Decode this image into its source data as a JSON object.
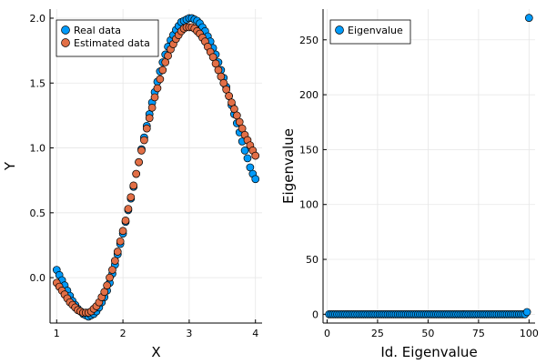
{
  "chart_data": [
    {
      "type": "scatter",
      "title": "",
      "xlabel": "X",
      "ylabel": "Y",
      "xlim": [
        0.9,
        4.1
      ],
      "ylim": [
        -0.35,
        2.07
      ],
      "x_ticks": [
        1,
        2,
        3,
        4
      ],
      "x_tick_labels": [
        "1",
        "2",
        "3",
        "4"
      ],
      "y_ticks": [
        0.0,
        0.5,
        1.0,
        1.5,
        2.0
      ],
      "y_tick_labels": [
        "0.0",
        "0.5",
        "1.0",
        "1.5",
        "2.0"
      ],
      "grid": true,
      "legend_position": "top-left",
      "series": [
        {
          "name": "Real data",
          "color": "#009af9",
          "x": [
            1.0,
            1.04,
            1.08,
            1.12,
            1.16,
            1.2,
            1.24,
            1.28,
            1.32,
            1.36,
            1.4,
            1.44,
            1.48,
            1.52,
            1.56,
            1.6,
            1.64,
            1.68,
            1.72,
            1.76,
            1.8,
            1.84,
            1.88,
            1.92,
            1.96,
            2.0,
            2.04,
            2.08,
            2.12,
            2.16,
            2.2,
            2.24,
            2.28,
            2.32,
            2.36,
            2.4,
            2.44,
            2.48,
            2.52,
            2.56,
            2.6,
            2.64,
            2.68,
            2.72,
            2.76,
            2.8,
            2.84,
            2.88,
            2.92,
            2.96,
            3.0,
            3.04,
            3.08,
            3.12,
            3.16,
            3.2,
            3.24,
            3.28,
            3.32,
            3.36,
            3.4,
            3.44,
            3.48,
            3.52,
            3.56,
            3.6,
            3.64,
            3.68,
            3.72,
            3.76,
            3.8,
            3.84,
            3.88,
            3.92,
            3.96,
            4.0
          ],
          "y": [
            0.06,
            0.02,
            -0.02,
            -0.06,
            -0.1,
            -0.14,
            -0.18,
            -0.21,
            -0.24,
            -0.26,
            -0.28,
            -0.29,
            -0.3,
            -0.29,
            -0.28,
            -0.26,
            -0.23,
            -0.19,
            -0.15,
            -0.1,
            -0.04,
            0.03,
            0.1,
            0.18,
            0.26,
            0.34,
            0.43,
            0.52,
            0.61,
            0.7,
            0.8,
            0.89,
            0.99,
            1.08,
            1.17,
            1.26,
            1.35,
            1.43,
            1.51,
            1.59,
            1.66,
            1.72,
            1.78,
            1.83,
            1.87,
            1.91,
            1.94,
            1.97,
            1.98,
            1.99,
            2.0,
            2.0,
            1.99,
            1.98,
            1.96,
            1.93,
            1.9,
            1.86,
            1.82,
            1.77,
            1.72,
            1.66,
            1.6,
            1.54,
            1.47,
            1.4,
            1.33,
            1.26,
            1.19,
            1.12,
            1.05,
            0.98,
            0.92,
            0.85,
            0.8,
            0.76
          ]
        },
        {
          "name": "Estimated data",
          "color": "#e26f46",
          "x": [
            1.0,
            1.04,
            1.08,
            1.12,
            1.16,
            1.2,
            1.24,
            1.28,
            1.32,
            1.36,
            1.4,
            1.44,
            1.48,
            1.52,
            1.56,
            1.6,
            1.64,
            1.68,
            1.72,
            1.76,
            1.8,
            1.84,
            1.88,
            1.92,
            1.96,
            2.0,
            2.04,
            2.08,
            2.12,
            2.16,
            2.2,
            2.24,
            2.28,
            2.32,
            2.36,
            2.4,
            2.44,
            2.48,
            2.52,
            2.56,
            2.6,
            2.64,
            2.68,
            2.72,
            2.76,
            2.8,
            2.84,
            2.88,
            2.92,
            2.96,
            3.0,
            3.04,
            3.08,
            3.12,
            3.16,
            3.2,
            3.24,
            3.28,
            3.32,
            3.36,
            3.4,
            3.44,
            3.48,
            3.52,
            3.56,
            3.6,
            3.64,
            3.68,
            3.72,
            3.76,
            3.8,
            3.84,
            3.88,
            3.92,
            3.96,
            4.0
          ],
          "y": [
            -0.04,
            -0.07,
            -0.1,
            -0.13,
            -0.16,
            -0.19,
            -0.21,
            -0.23,
            -0.25,
            -0.26,
            -0.27,
            -0.27,
            -0.27,
            -0.26,
            -0.24,
            -0.22,
            -0.19,
            -0.15,
            -0.11,
            -0.06,
            0.0,
            0.06,
            0.13,
            0.2,
            0.28,
            0.36,
            0.44,
            0.53,
            0.62,
            0.71,
            0.8,
            0.89,
            0.98,
            1.06,
            1.15,
            1.23,
            1.31,
            1.39,
            1.46,
            1.53,
            1.6,
            1.66,
            1.71,
            1.76,
            1.8,
            1.84,
            1.87,
            1.9,
            1.92,
            1.93,
            1.93,
            1.93,
            1.92,
            1.9,
            1.88,
            1.85,
            1.82,
            1.78,
            1.74,
            1.7,
            1.65,
            1.6,
            1.55,
            1.5,
            1.45,
            1.4,
            1.35,
            1.3,
            1.25,
            1.2,
            1.15,
            1.1,
            1.06,
            1.02,
            0.98,
            0.94
          ]
        }
      ]
    },
    {
      "type": "scatter",
      "title": "",
      "xlabel": "Id. Eigenvalue",
      "ylabel": "Eigenvalue",
      "xlim": [
        -2,
        103
      ],
      "ylim": [
        -8,
        278
      ],
      "x_ticks": [
        0,
        25,
        50,
        75,
        100
      ],
      "x_tick_labels": [
        "0",
        "25",
        "50",
        "75",
        "100"
      ],
      "y_ticks": [
        0,
        50,
        100,
        150,
        200,
        250
      ],
      "y_tick_labels": [
        "0",
        "50",
        "100",
        "150",
        "200",
        "250"
      ],
      "grid": true,
      "legend_position": "top-left",
      "series": [
        {
          "name": "Eigenvalue",
          "color": "#009af9",
          "x": [
            1,
            2,
            3,
            4,
            5,
            6,
            7,
            8,
            9,
            10,
            11,
            12,
            13,
            14,
            15,
            16,
            17,
            18,
            19,
            20,
            21,
            22,
            23,
            24,
            25,
            26,
            27,
            28,
            29,
            30,
            31,
            32,
            33,
            34,
            35,
            36,
            37,
            38,
            39,
            40,
            41,
            42,
            43,
            44,
            45,
            46,
            47,
            48,
            49,
            50,
            51,
            52,
            53,
            54,
            55,
            56,
            57,
            58,
            59,
            60,
            61,
            62,
            63,
            64,
            65,
            66,
            67,
            68,
            69,
            70,
            71,
            72,
            73,
            74,
            75,
            76,
            77,
            78,
            79,
            80,
            81,
            82,
            83,
            84,
            85,
            86,
            87,
            88,
            89,
            90,
            91,
            92,
            93,
            94,
            95,
            96,
            97,
            98,
            99,
            100
          ],
          "y": [
            0,
            0,
            0,
            0,
            0,
            0,
            0,
            0,
            0,
            0,
            0,
            0,
            0,
            0,
            0,
            0,
            0,
            0,
            0,
            0,
            0,
            0,
            0,
            0,
            0,
            0,
            0,
            0,
            0,
            0,
            0,
            0,
            0,
            0,
            0,
            0,
            0,
            0,
            0,
            0,
            0,
            0,
            0,
            0,
            0,
            0,
            0,
            0,
            0,
            0,
            0,
            0,
            0,
            0,
            0,
            0,
            0,
            0,
            0,
            0,
            0,
            0,
            0,
            0,
            0,
            0,
            0,
            0,
            0,
            0,
            0,
            0,
            0,
            0,
            0,
            0,
            0,
            0,
            0,
            0,
            0,
            0,
            0,
            0,
            0,
            0,
            0,
            0,
            0,
            0,
            0,
            0,
            0,
            0,
            0,
            0,
            0,
            0,
            2,
            270
          ]
        }
      ]
    }
  ]
}
